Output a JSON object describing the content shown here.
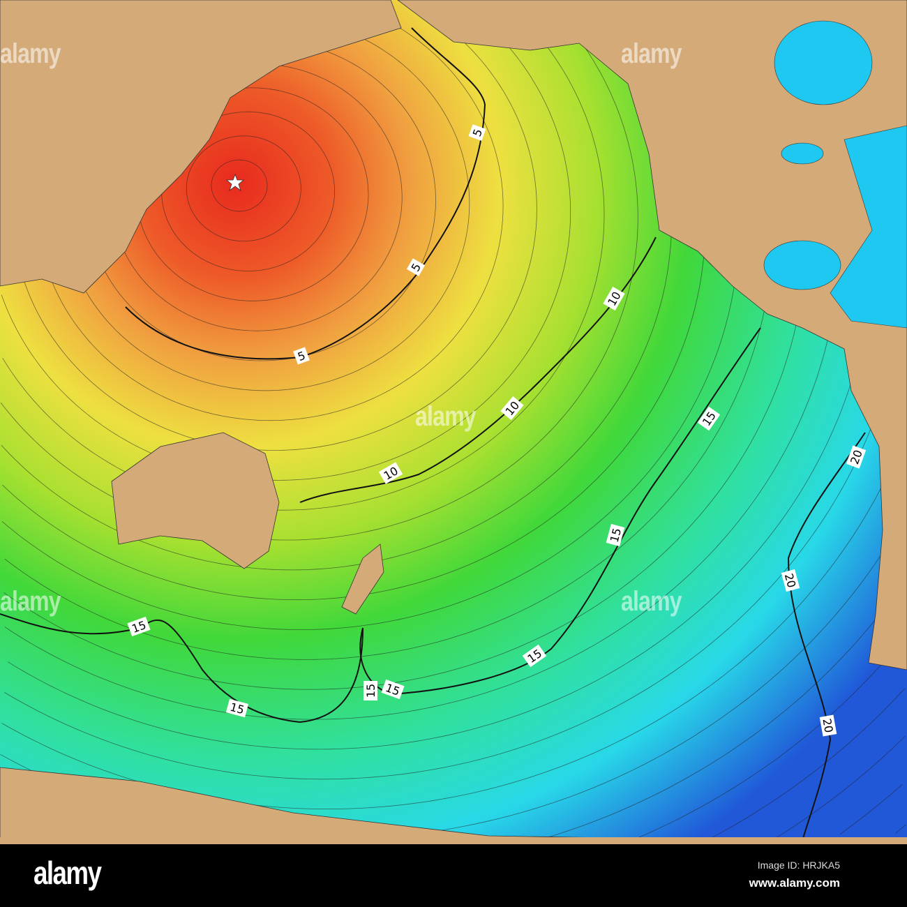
{
  "map": {
    "epicenter_marker": "star-icon",
    "contour_unit_labels": [
      {
        "value": "5"
      },
      {
        "value": "5"
      },
      {
        "value": "5"
      },
      {
        "value": "10"
      },
      {
        "value": "10"
      },
      {
        "value": "10"
      },
      {
        "value": "15"
      },
      {
        "value": "15"
      },
      {
        "value": "15"
      },
      {
        "value": "15"
      },
      {
        "value": "15"
      },
      {
        "value": "15"
      },
      {
        "value": "15"
      },
      {
        "value": "20"
      },
      {
        "value": "20"
      },
      {
        "value": "20"
      }
    ],
    "colors": {
      "land": "#d4ab78",
      "near": "#e83020",
      "mid": "#f0e030",
      "far_green": "#30d030",
      "far_cyan": "#20e0e8",
      "farthest": "#2050d8",
      "inland_water": "#1ec8f0"
    }
  },
  "watermark": "alamy",
  "footer": {
    "logo": "alamy",
    "image_id": "Image ID: HRJKA5",
    "url": "www.alamy.com"
  }
}
